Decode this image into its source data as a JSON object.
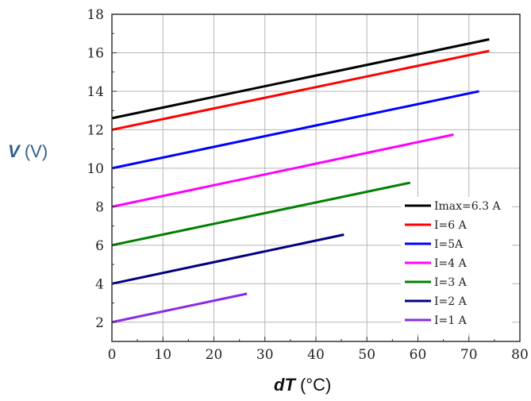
{
  "chart_data": {
    "type": "line",
    "xlabel_symbol": "dT",
    "xlabel_unit": "(°C)",
    "ylabel_symbol": "V",
    "ylabel_unit": "(V)",
    "xlim": [
      0,
      80
    ],
    "ylim": [
      1,
      18
    ],
    "xticks": [
      0,
      10,
      20,
      30,
      40,
      50,
      60,
      70,
      80
    ],
    "yticks": [
      2,
      4,
      6,
      8,
      10,
      12,
      14,
      16,
      18
    ],
    "grid": true,
    "legend_position": "bottom-right",
    "series": [
      {
        "name": "Imax=6.3 A",
        "color": "#000000",
        "x": [
          0,
          74
        ],
        "y": [
          12.6,
          16.7
        ]
      },
      {
        "name": "I=6 A",
        "color": "#ff0000",
        "x": [
          0,
          74
        ],
        "y": [
          12.0,
          16.1
        ]
      },
      {
        "name": "I=5A",
        "color": "#0000ff",
        "x": [
          0,
          72
        ],
        "y": [
          10.0,
          14.0
        ]
      },
      {
        "name": "I=4 A",
        "color": "#ff00ff",
        "x": [
          0,
          67
        ],
        "y": [
          8.0,
          11.75
        ]
      },
      {
        "name": "I=3 A",
        "color": "#008000",
        "x": [
          0,
          58.5
        ],
        "y": [
          6.0,
          9.25
        ]
      },
      {
        "name": "I=2 A",
        "color": "#000080",
        "x": [
          0,
          45.5
        ],
        "y": [
          4.0,
          6.55
        ]
      },
      {
        "name": "I=1 A",
        "color": "#8a2be2",
        "x": [
          0,
          26.5
        ],
        "y": [
          2.0,
          3.48
        ]
      }
    ]
  }
}
